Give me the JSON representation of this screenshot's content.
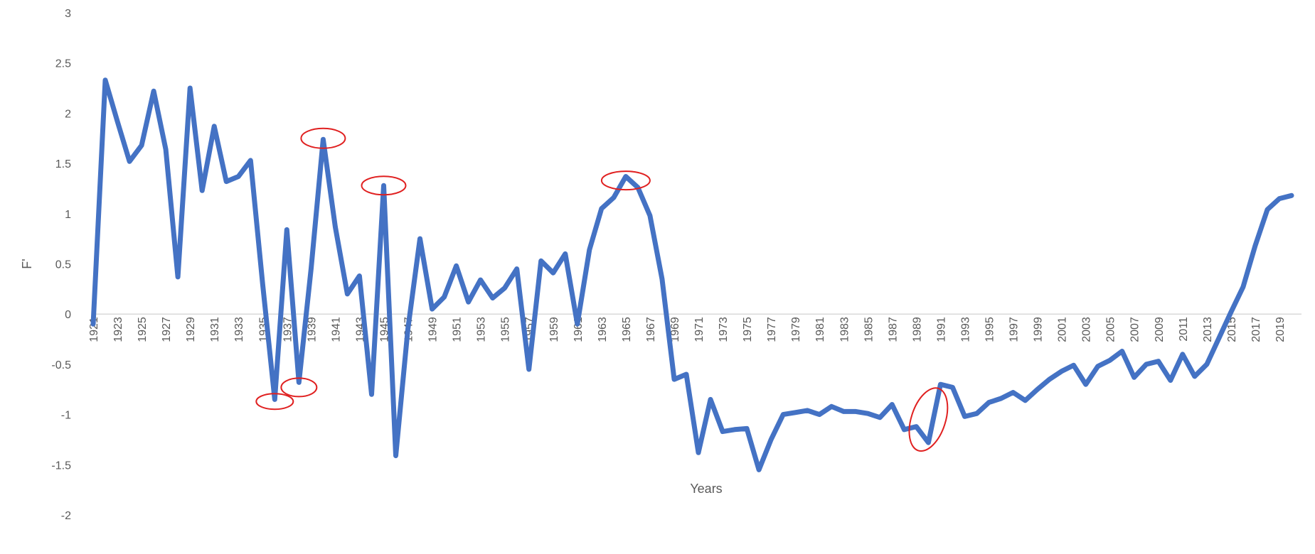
{
  "chart_data": {
    "type": "line",
    "title": "",
    "xlabel": "Years",
    "ylabel": "F'",
    "ylim": [
      -2,
      3
    ],
    "yticks": [
      3,
      2.5,
      2,
      1.5,
      1,
      0.5,
      0,
      -0.5,
      -1,
      -1.5,
      -2
    ],
    "xtick_labels": [
      "1921",
      "1923",
      "1925",
      "1927",
      "1929",
      "1931",
      "1933",
      "1935",
      "1937",
      "1939",
      "1941",
      "1943",
      "1945",
      "1947",
      "1949",
      "1951",
      "1953",
      "1955",
      "1957",
      "1959",
      "1961",
      "1963",
      "1965",
      "1967",
      "1969",
      "1971",
      "1973",
      "1975",
      "1977",
      "1979",
      "1981",
      "1983",
      "1985",
      "1987",
      "1989",
      "1991",
      "1993",
      "1995",
      "1997",
      "1999",
      "2001",
      "2003",
      "2005",
      "2007",
      "2009",
      "2011",
      "2013",
      "2015",
      "2017",
      "2019"
    ],
    "grid": false,
    "line_color": "#4472C4",
    "x": [
      1921,
      1922,
      1923,
      1924,
      1925,
      1926,
      1927,
      1928,
      1929,
      1930,
      1931,
      1932,
      1933,
      1934,
      1935,
      1936,
      1937,
      1938,
      1939,
      1940,
      1941,
      1942,
      1943,
      1944,
      1945,
      1946,
      1947,
      1948,
      1949,
      1950,
      1951,
      1952,
      1953,
      1954,
      1955,
      1956,
      1957,
      1958,
      1959,
      1960,
      1961,
      1962,
      1963,
      1964,
      1965,
      1966,
      1967,
      1968,
      1969,
      1970,
      1971,
      1972,
      1973,
      1974,
      1975,
      1976,
      1977,
      1978,
      1979,
      1980,
      1981,
      1982,
      1983,
      1984,
      1985,
      1986,
      1987,
      1988,
      1989,
      1990,
      1991,
      1992,
      1993,
      1994,
      1995,
      1996,
      1997,
      1998,
      1999,
      2000,
      2001,
      2002,
      2003,
      2004,
      2005,
      2006,
      2007,
      2008,
      2009,
      2010,
      2011,
      2012,
      2013,
      2014,
      2015,
      2016,
      2017,
      2018,
      2019,
      2020
    ],
    "series": [
      {
        "name": "",
        "values": [
          -0.1,
          2.33,
          1.92,
          1.52,
          1.68,
          2.22,
          1.64,
          0.37,
          2.25,
          1.23,
          1.87,
          1.32,
          1.37,
          1.53,
          0.3,
          -0.85,
          0.84,
          -0.68,
          0.45,
          1.74,
          0.87,
          0.2,
          0.38,
          -0.8,
          1.28,
          -1.41,
          -0.15,
          0.75,
          0.05,
          0.17,
          0.48,
          0.12,
          0.34,
          0.16,
          0.26,
          0.45,
          -0.55,
          0.53,
          0.41,
          0.6,
          -0.1,
          0.64,
          1.05,
          1.16,
          1.37,
          1.26,
          0.98,
          0.35,
          -0.65,
          -0.6,
          -1.38,
          -0.85,
          -1.17,
          -1.15,
          -1.14,
          -1.55,
          -1.25,
          -1.0,
          -0.98,
          -0.96,
          -1.0,
          -0.92,
          -0.97,
          -0.97,
          -0.99,
          -1.03,
          -0.9,
          -1.15,
          -1.12,
          -1.28,
          -0.7,
          -0.73,
          -1.02,
          -0.99,
          -0.88,
          -0.84,
          -0.78,
          -0.86,
          -0.75,
          -0.65,
          -0.57,
          -0.51,
          -0.7,
          -0.52,
          -0.46,
          -0.37,
          -0.63,
          -0.5,
          -0.47,
          -0.66,
          -0.4,
          -0.62,
          -0.5,
          -0.24,
          0.02,
          0.27,
          0.68,
          1.04,
          1.15,
          1.18
        ]
      }
    ],
    "annotations": [
      {
        "kind": "ellipse",
        "x": 1936,
        "y": -0.87,
        "color": "#E02020"
      },
      {
        "kind": "ellipse",
        "x": 1938,
        "y": -0.73,
        "color": "#E02020"
      },
      {
        "kind": "ellipse",
        "x": 1940,
        "y": 1.75,
        "color": "#E02020"
      },
      {
        "kind": "ellipse",
        "x": 1945,
        "y": 1.28,
        "color": "#E02020"
      },
      {
        "kind": "ellipse",
        "x": 1965,
        "y": 1.33,
        "color": "#E02020"
      },
      {
        "kind": "ellipse",
        "x": 1990,
        "y": -1.05,
        "color": "#E02020"
      }
    ]
  }
}
